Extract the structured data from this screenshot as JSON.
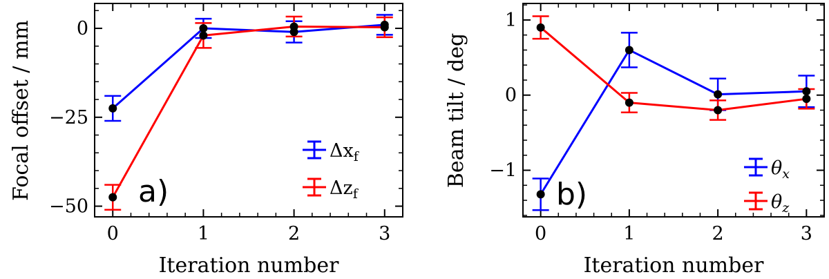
{
  "chart_data": [
    {
      "type": "line",
      "panel_label": "a)",
      "xlabel": "Iteration number",
      "ylabel": "Focal offset / mm",
      "xlim": [
        -0.2,
        3.2
      ],
      "ylim": [
        -53,
        7
      ],
      "x_ticks": [
        0,
        1,
        2,
        3
      ],
      "x_tick_labels": [
        "0",
        "1",
        "2",
        "3"
      ],
      "y_ticks": [
        0,
        -25,
        -50
      ],
      "y_tick_labels": [
        "0",
        "−25",
        "−50"
      ],
      "legend_position": "bottom-right",
      "series": [
        {
          "name": "Δx_f",
          "legend_main": "Δx",
          "legend_sub": "f",
          "color": "#0000ff",
          "x": [
            0,
            1,
            2,
            3
          ],
          "y": [
            -22.5,
            0.0,
            -1.0,
            1.0
          ],
          "err": [
            3.5,
            2.7,
            3.0,
            2.8
          ]
        },
        {
          "name": "Δz_f",
          "legend_main": "Δz",
          "legend_sub": "f",
          "color": "#ff0000",
          "x": [
            0,
            1,
            2,
            3
          ],
          "y": [
            -47.5,
            -2.0,
            0.5,
            0.3
          ],
          "err": [
            3.5,
            3.5,
            2.8,
            2.8
          ]
        }
      ]
    },
    {
      "type": "line",
      "panel_label": "b)",
      "xlabel": "Iteration number",
      "ylabel": "Beam tilt / deg",
      "xlim": [
        -0.2,
        3.2
      ],
      "ylim": [
        -1.62,
        1.22
      ],
      "x_ticks": [
        0,
        1,
        2,
        3
      ],
      "x_tick_labels": [
        "0",
        "1",
        "2",
        "3"
      ],
      "y_ticks": [
        1,
        0,
        -1
      ],
      "y_tick_labels": [
        "1",
        "0",
        "−1"
      ],
      "legend_position": "bottom-right",
      "series": [
        {
          "name": "θ_x",
          "legend_main": "θ",
          "legend_sub": "x",
          "color": "#0000ff",
          "x": [
            0,
            1,
            2,
            3
          ],
          "y": [
            -1.32,
            0.6,
            0.01,
            0.05
          ],
          "err": [
            0.21,
            0.23,
            0.21,
            0.21
          ]
        },
        {
          "name": "θ_z",
          "legend_main": "θ",
          "legend_sub": "z",
          "color": "#ff0000",
          "x": [
            0,
            1,
            2,
            3
          ],
          "y": [
            0.9,
            -0.1,
            -0.2,
            -0.05
          ],
          "err": [
            0.15,
            0.13,
            0.13,
            0.13
          ]
        }
      ]
    }
  ]
}
